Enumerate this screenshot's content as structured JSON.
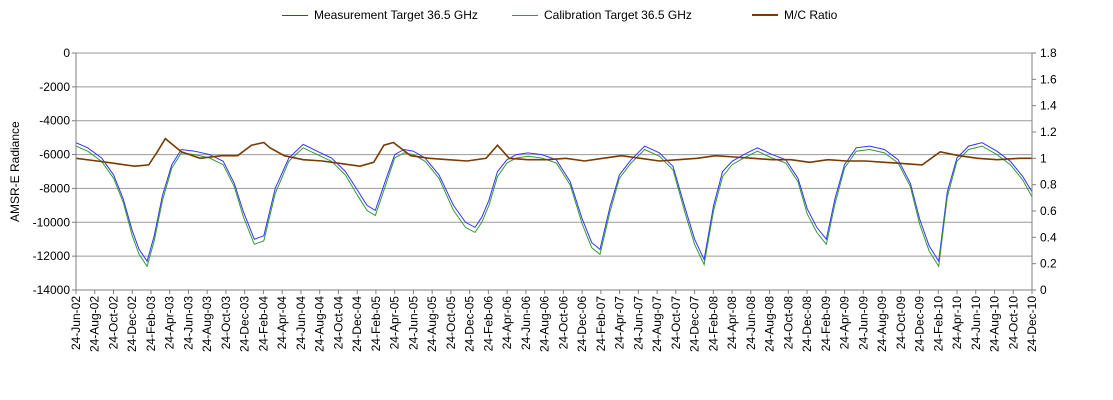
{
  "chart_data": {
    "type": "line",
    "title": "",
    "ylabel": "AMSR-E Radiance",
    "y2label": "",
    "ylim": [
      -14000,
      0
    ],
    "yticks": [
      0,
      -2000,
      -4000,
      -6000,
      -8000,
      -10000,
      -12000,
      -14000
    ],
    "ytick_labels": [
      "0",
      "-2000",
      "-4000",
      "-6000",
      "-8000",
      "-10000",
      "-12000",
      "-14000"
    ],
    "y2lim": [
      0,
      1.8
    ],
    "y2ticks": [
      0,
      0.2,
      0.4,
      0.6,
      0.8,
      1,
      1.2,
      1.4,
      1.6,
      1.8
    ],
    "y2tick_labels": [
      "0",
      "0.2",
      "0.4",
      "0.6",
      "0.8",
      "1",
      "1.2",
      "1.4",
      "1.6",
      "1.8"
    ],
    "legend_position": "top",
    "grid": "horizontal",
    "xlim": [
      "2002-06-24",
      "2010-12-24"
    ],
    "xtick_labels": [
      "24-Jun-02",
      "24-Aug-02",
      "24-Oct-02",
      "24-Dec-02",
      "24-Feb-03",
      "24-Apr-03",
      "24-Jun-03",
      "24-Aug-03",
      "24-Oct-03",
      "24-Dec-03",
      "24-Feb-04",
      "24-Apr-04",
      "24-Jun-04",
      "24-Aug-04",
      "24-Oct-04",
      "24-Dec-04",
      "24-Feb-05",
      "24-Apr-05",
      "24-Jun-05",
      "24-Aug-05",
      "24-Oct-05",
      "24-Dec-05",
      "24-Feb-06",
      "24-Apr-06",
      "24-Jun-06",
      "24-Aug-06",
      "24-Oct-06",
      "24-Dec-06",
      "24-Feb-07",
      "24-Apr-07",
      "24-Jun-07",
      "24-Aug-07",
      "24-Oct-07",
      "24-Dec-07",
      "24-Feb-08",
      "24-Apr-08",
      "24-Jun-08",
      "24-Aug-08",
      "24-Oct-08",
      "24-Dec-08",
      "24-Feb-09",
      "24-Apr-09",
      "24-Jun-09",
      "24-Aug-09",
      "24-Oct-09",
      "24-Dec-09",
      "24-Feb-10",
      "24-Apr-10",
      "24-Jun-10",
      "24-Aug-10",
      "24-Oct-10",
      "24-Dec-10"
    ],
    "series": [
      {
        "name": "Measurement Target 36.5 GHz",
        "axis": "left",
        "color": "#3333ff",
        "x": [
          "2002-06-24",
          "2002-08-01",
          "2002-09-15",
          "2002-10-24",
          "2002-11-24",
          "2002-12-24",
          "2003-01-15",
          "2003-02-10",
          "2003-03-05",
          "2003-04-01",
          "2003-05-01",
          "2003-06-01",
          "2003-07-15",
          "2003-09-01",
          "2003-10-15",
          "2003-11-20",
          "2003-12-20",
          "2004-01-24",
          "2004-02-24",
          "2004-04-01",
          "2004-05-15",
          "2004-07-01",
          "2004-08-15",
          "2004-10-01",
          "2004-11-15",
          "2004-12-24",
          "2005-01-24",
          "2005-02-20",
          "2005-03-24",
          "2005-04-24",
          "2005-05-24",
          "2005-06-24",
          "2005-08-01",
          "2005-09-15",
          "2005-11-01",
          "2005-12-10",
          "2006-01-10",
          "2006-02-01",
          "2006-02-24",
          "2006-03-24",
          "2006-04-24",
          "2006-05-24",
          "2006-07-01",
          "2006-08-15",
          "2006-10-01",
          "2006-11-15",
          "2006-12-24",
          "2007-01-24",
          "2007-02-20",
          "2007-03-24",
          "2007-04-24",
          "2007-06-01",
          "2007-07-15",
          "2007-09-01",
          "2007-10-15",
          "2007-11-24",
          "2007-12-24",
          "2008-01-24",
          "2008-02-24",
          "2008-03-24",
          "2008-04-24",
          "2008-06-01",
          "2008-07-15",
          "2008-09-01",
          "2008-10-15",
          "2008-11-24",
          "2008-12-24",
          "2009-01-24",
          "2009-02-24",
          "2009-03-24",
          "2009-04-24",
          "2009-06-01",
          "2009-07-15",
          "2009-09-01",
          "2009-10-15",
          "2009-11-24",
          "2009-12-24",
          "2010-01-24",
          "2010-02-24",
          "2010-03-24",
          "2010-04-24",
          "2010-06-01",
          "2010-07-15",
          "2010-09-01",
          "2010-10-15",
          "2010-11-24",
          "2010-12-24"
        ],
        "values": [
          -5300,
          -5600,
          -6200,
          -7200,
          -8600,
          -10500,
          -11600,
          -12300,
          -10800,
          -8400,
          -6600,
          -5700,
          -5800,
          -6000,
          -6400,
          -7700,
          -9400,
          -11000,
          -10800,
          -8000,
          -6200,
          -5400,
          -5800,
          -6200,
          -7000,
          -8100,
          -9000,
          -9300,
          -7600,
          -6000,
          -5700,
          -5800,
          -6200,
          -7200,
          -9000,
          -10000,
          -10300,
          -9700,
          -8700,
          -7000,
          -6300,
          -6000,
          -5900,
          -6000,
          -6300,
          -7600,
          -9800,
          -11200,
          -11600,
          -9100,
          -7200,
          -6300,
          -5500,
          -5900,
          -6700,
          -9200,
          -11000,
          -12200,
          -9000,
          -7000,
          -6400,
          -6000,
          -5600,
          -6000,
          -6300,
          -7400,
          -9200,
          -10300,
          -11000,
          -8600,
          -6600,
          -5600,
          -5500,
          -5700,
          -6300,
          -7700,
          -9800,
          -11400,
          -12300,
          -8200,
          -6200,
          -5500,
          -5300,
          -5800,
          -6400,
          -7300,
          -8200
        ]
      },
      {
        "name": "Calibration Target 36.5 GHz",
        "axis": "left",
        "color": "#339933",
        "x": [
          "2002-06-24",
          "2002-08-01",
          "2002-09-15",
          "2002-10-24",
          "2002-11-24",
          "2002-12-24",
          "2003-01-15",
          "2003-02-10",
          "2003-03-05",
          "2003-04-01",
          "2003-05-01",
          "2003-06-01",
          "2003-07-15",
          "2003-09-01",
          "2003-10-15",
          "2003-11-20",
          "2003-12-20",
          "2004-01-24",
          "2004-02-24",
          "2004-04-01",
          "2004-05-15",
          "2004-07-01",
          "2004-08-15",
          "2004-10-01",
          "2004-11-15",
          "2004-12-24",
          "2005-01-24",
          "2005-02-20",
          "2005-03-24",
          "2005-04-24",
          "2005-05-24",
          "2005-06-24",
          "2005-08-01",
          "2005-09-15",
          "2005-11-01",
          "2005-12-10",
          "2006-01-10",
          "2006-02-01",
          "2006-02-24",
          "2006-03-24",
          "2006-04-24",
          "2006-05-24",
          "2006-07-01",
          "2006-08-15",
          "2006-10-01",
          "2006-11-15",
          "2006-12-24",
          "2007-01-24",
          "2007-02-20",
          "2007-03-24",
          "2007-04-24",
          "2007-06-01",
          "2007-07-15",
          "2007-09-01",
          "2007-10-15",
          "2007-11-24",
          "2007-12-24",
          "2008-01-24",
          "2008-02-24",
          "2008-03-24",
          "2008-04-24",
          "2008-06-01",
          "2008-07-15",
          "2008-09-01",
          "2008-10-15",
          "2008-11-24",
          "2008-12-24",
          "2009-01-24",
          "2009-02-24",
          "2009-03-24",
          "2009-04-24",
          "2009-06-01",
          "2009-07-15",
          "2009-09-01",
          "2009-10-15",
          "2009-11-24",
          "2009-12-24",
          "2010-01-24",
          "2010-02-24",
          "2010-03-24",
          "2010-04-24",
          "2010-06-01",
          "2010-07-15",
          "2010-09-01",
          "2010-10-15",
          "2010-11-24",
          "2010-12-24"
        ],
        "values": [
          -5500,
          -5800,
          -6400,
          -7400,
          -8800,
          -10800,
          -11900,
          -12600,
          -11100,
          -8700,
          -6800,
          -5900,
          -6000,
          -6200,
          -6600,
          -7900,
          -9700,
          -11300,
          -11100,
          -8300,
          -6400,
          -5600,
          -6000,
          -6400,
          -7200,
          -8400,
          -9300,
          -9600,
          -7900,
          -6200,
          -5900,
          -6000,
          -6400,
          -7400,
          -9300,
          -10300,
          -10600,
          -10000,
          -9000,
          -7300,
          -6500,
          -6200,
          -6100,
          -6200,
          -6500,
          -7800,
          -10100,
          -11500,
          -11900,
          -9400,
          -7400,
          -6500,
          -5700,
          -6100,
          -6900,
          -9500,
          -11300,
          -12500,
          -9300,
          -7300,
          -6600,
          -6200,
          -5800,
          -6200,
          -6500,
          -7600,
          -9500,
          -10600,
          -11300,
          -8900,
          -6800,
          -5800,
          -5700,
          -5900,
          -6500,
          -7900,
          -10100,
          -11700,
          -12600,
          -8500,
          -6400,
          -5700,
          -5500,
          -6000,
          -6600,
          -7500,
          -8500
        ]
      },
      {
        "name": "M/C Ratio",
        "axis": "right",
        "color": "#7a3a00",
        "x": [
          "2002-06-24",
          "2002-09-01",
          "2002-11-01",
          "2003-01-01",
          "2003-02-15",
          "2003-03-15",
          "2003-04-10",
          "2003-06-01",
          "2003-08-01",
          "2003-10-10",
          "2003-12-01",
          "2004-01-15",
          "2004-02-24",
          "2004-03-15",
          "2004-05-01",
          "2004-07-01",
          "2004-09-01",
          "2004-11-01",
          "2005-01-01",
          "2005-02-15",
          "2005-03-20",
          "2005-04-20",
          "2005-06-15",
          "2005-08-15",
          "2005-10-15",
          "2005-12-15",
          "2006-02-15",
          "2006-03-24",
          "2006-05-01",
          "2006-07-01",
          "2006-09-01",
          "2006-11-01",
          "2007-01-01",
          "2007-03-01",
          "2007-05-01",
          "2007-07-01",
          "2007-09-01",
          "2007-11-01",
          "2008-01-01",
          "2008-03-01",
          "2008-05-01",
          "2008-07-01",
          "2008-09-01",
          "2008-11-01",
          "2009-01-01",
          "2009-03-01",
          "2009-05-01",
          "2009-07-01",
          "2009-09-01",
          "2009-11-01",
          "2010-01-01",
          "2010-03-01",
          "2010-05-01",
          "2010-07-01",
          "2010-09-01",
          "2010-11-15",
          "2010-12-24"
        ],
        "values": [
          1.0,
          0.98,
          0.96,
          0.94,
          0.95,
          1.05,
          1.15,
          1.05,
          1.0,
          1.02,
          1.02,
          1.1,
          1.12,
          1.08,
          1.02,
          0.99,
          0.98,
          0.96,
          0.94,
          0.97,
          1.1,
          1.12,
          1.02,
          1.0,
          0.99,
          0.98,
          1.0,
          1.1,
          1.0,
          0.99,
          0.99,
          1.0,
          0.98,
          1.0,
          1.02,
          1.0,
          0.98,
          0.99,
          1.0,
          1.02,
          1.01,
          1.0,
          0.99,
          0.99,
          0.97,
          0.99,
          0.98,
          0.98,
          0.97,
          0.96,
          0.95,
          1.05,
          1.02,
          1.0,
          0.99,
          1.0,
          1.0
        ]
      }
    ]
  }
}
